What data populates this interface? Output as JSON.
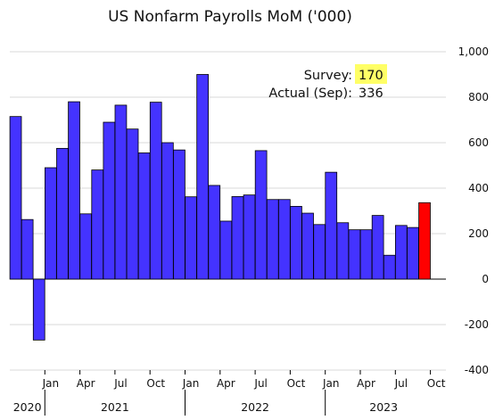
{
  "chart_data": {
    "type": "bar",
    "title": "US Nonfarm Payrolls MoM ('000)",
    "xlabel": "",
    "ylabel": "",
    "ylim": [
      -400,
      1000
    ],
    "y_ticks": [
      1000,
      800,
      600,
      400,
      200,
      0,
      -200,
      -400
    ],
    "y_tick_labels": [
      "1,000",
      "800",
      "600",
      "400",
      "200",
      "0",
      "-200",
      "-400"
    ],
    "y_axis_side": "right",
    "grid": "horizontal",
    "legend": "none",
    "categories": [
      "2020-10",
      "2020-11",
      "2020-12",
      "2021-01",
      "2021-02",
      "2021-03",
      "2021-04",
      "2021-05",
      "2021-06",
      "2021-07",
      "2021-08",
      "2021-09",
      "2021-10",
      "2021-11",
      "2021-12",
      "2022-01",
      "2022-02",
      "2022-03",
      "2022-04",
      "2022-05",
      "2022-06",
      "2022-07",
      "2022-08",
      "2022-09",
      "2022-10",
      "2022-11",
      "2022-12",
      "2023-01",
      "2023-02",
      "2023-03",
      "2023-04",
      "2023-05",
      "2023-06",
      "2023-07",
      "2023-08",
      "2023-09"
    ],
    "values": [
      715,
      262,
      -268,
      490,
      575,
      780,
      287,
      480,
      690,
      765,
      660,
      555,
      778,
      600,
      568,
      362,
      900,
      412,
      255,
      363,
      370,
      565,
      350,
      350,
      320,
      290,
      240,
      470,
      248,
      217,
      217,
      280,
      105,
      236,
      227,
      336
    ],
    "bar_colors": {
      "default": "#4433ff",
      "highlight": "#ff0000",
      "highlight_category": "2023-09"
    },
    "x_ticks": [
      {
        "label": "Jan",
        "category": "2021-01"
      },
      {
        "label": "Apr",
        "category": "2021-04"
      },
      {
        "label": "Jul",
        "category": "2021-07"
      },
      {
        "label": "Oct",
        "category": "2021-10"
      },
      {
        "label": "Jan",
        "category": "2022-01"
      },
      {
        "label": "Apr",
        "category": "2022-04"
      },
      {
        "label": "Jul",
        "category": "2022-07"
      },
      {
        "label": "Oct",
        "category": "2022-10"
      },
      {
        "label": "Jan",
        "category": "2023-01"
      },
      {
        "label": "Apr",
        "category": "2023-04"
      },
      {
        "label": "Jul",
        "category": "2023-07"
      },
      {
        "label": "Oct",
        "category": "2023-10"
      }
    ],
    "year_labels": [
      {
        "label": "2020",
        "from": "2020-10",
        "to": "2020-12"
      },
      {
        "label": "2021",
        "from": "2021-01",
        "to": "2021-12"
      },
      {
        "label": "2022",
        "from": "2022-01",
        "to": "2022-12"
      },
      {
        "label": "2023",
        "from": "2023-01",
        "to": "2023-10"
      }
    ],
    "annotation": {
      "survey_label": "Survey:",
      "survey_value": "170",
      "actual_label": "Actual (Sep):",
      "actual_value": "336",
      "highlight_color": "#ffff66"
    }
  }
}
